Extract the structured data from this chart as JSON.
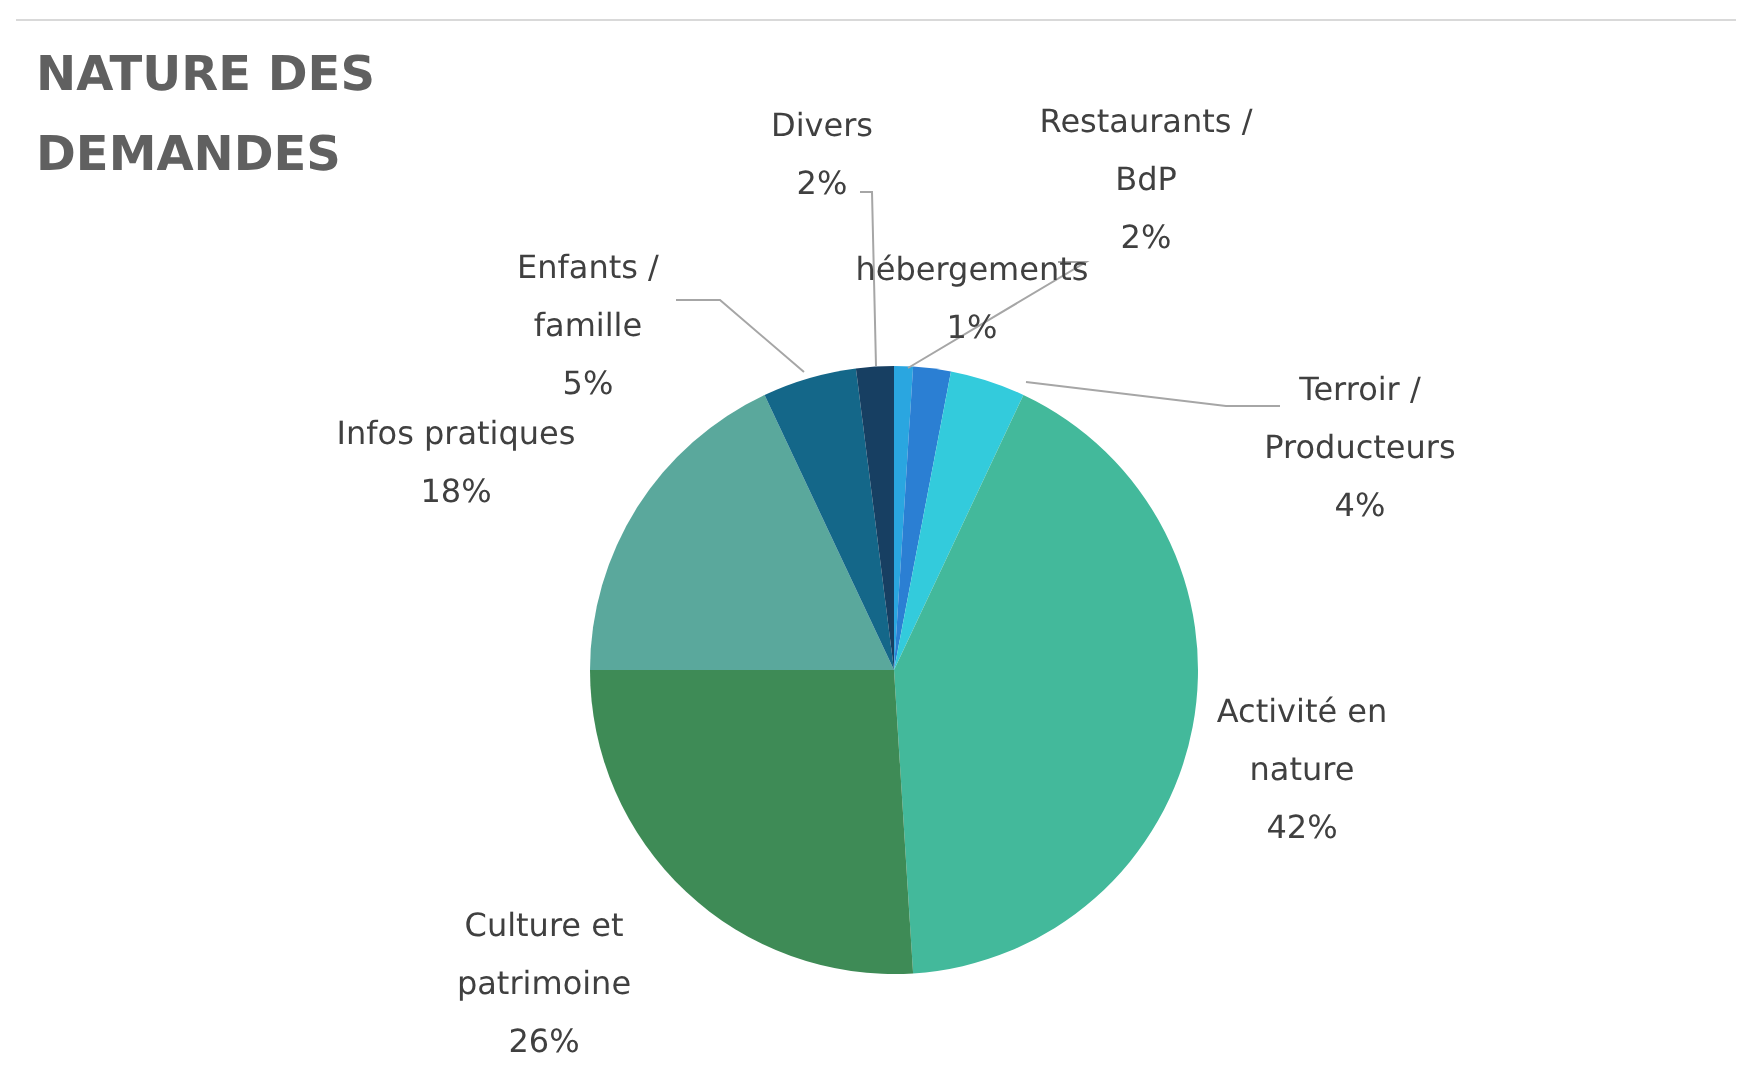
{
  "chart_data": {
    "type": "pie",
    "title": "NATURE DES DEMANDES",
    "categories": [
      "hébergements",
      "Restaurants / BdP",
      "Terroir / Producteurs",
      "Activité en nature",
      "Culture et patrimoine",
      "Infos pratiques",
      "Enfants / famille",
      "Divers"
    ],
    "values": [
      1,
      2,
      4,
      42,
      26,
      18,
      5,
      2
    ],
    "colors": [
      "#2aa6e0",
      "#2b7fd3",
      "#33cbdc",
      "#43b99b",
      "#3e8b56",
      "#5aa89c",
      "#146789",
      "#173f62"
    ],
    "value_labels": [
      "1%",
      "2%",
      "4%",
      "42%",
      "26%",
      "18%",
      "5%",
      "2%"
    ]
  }
}
